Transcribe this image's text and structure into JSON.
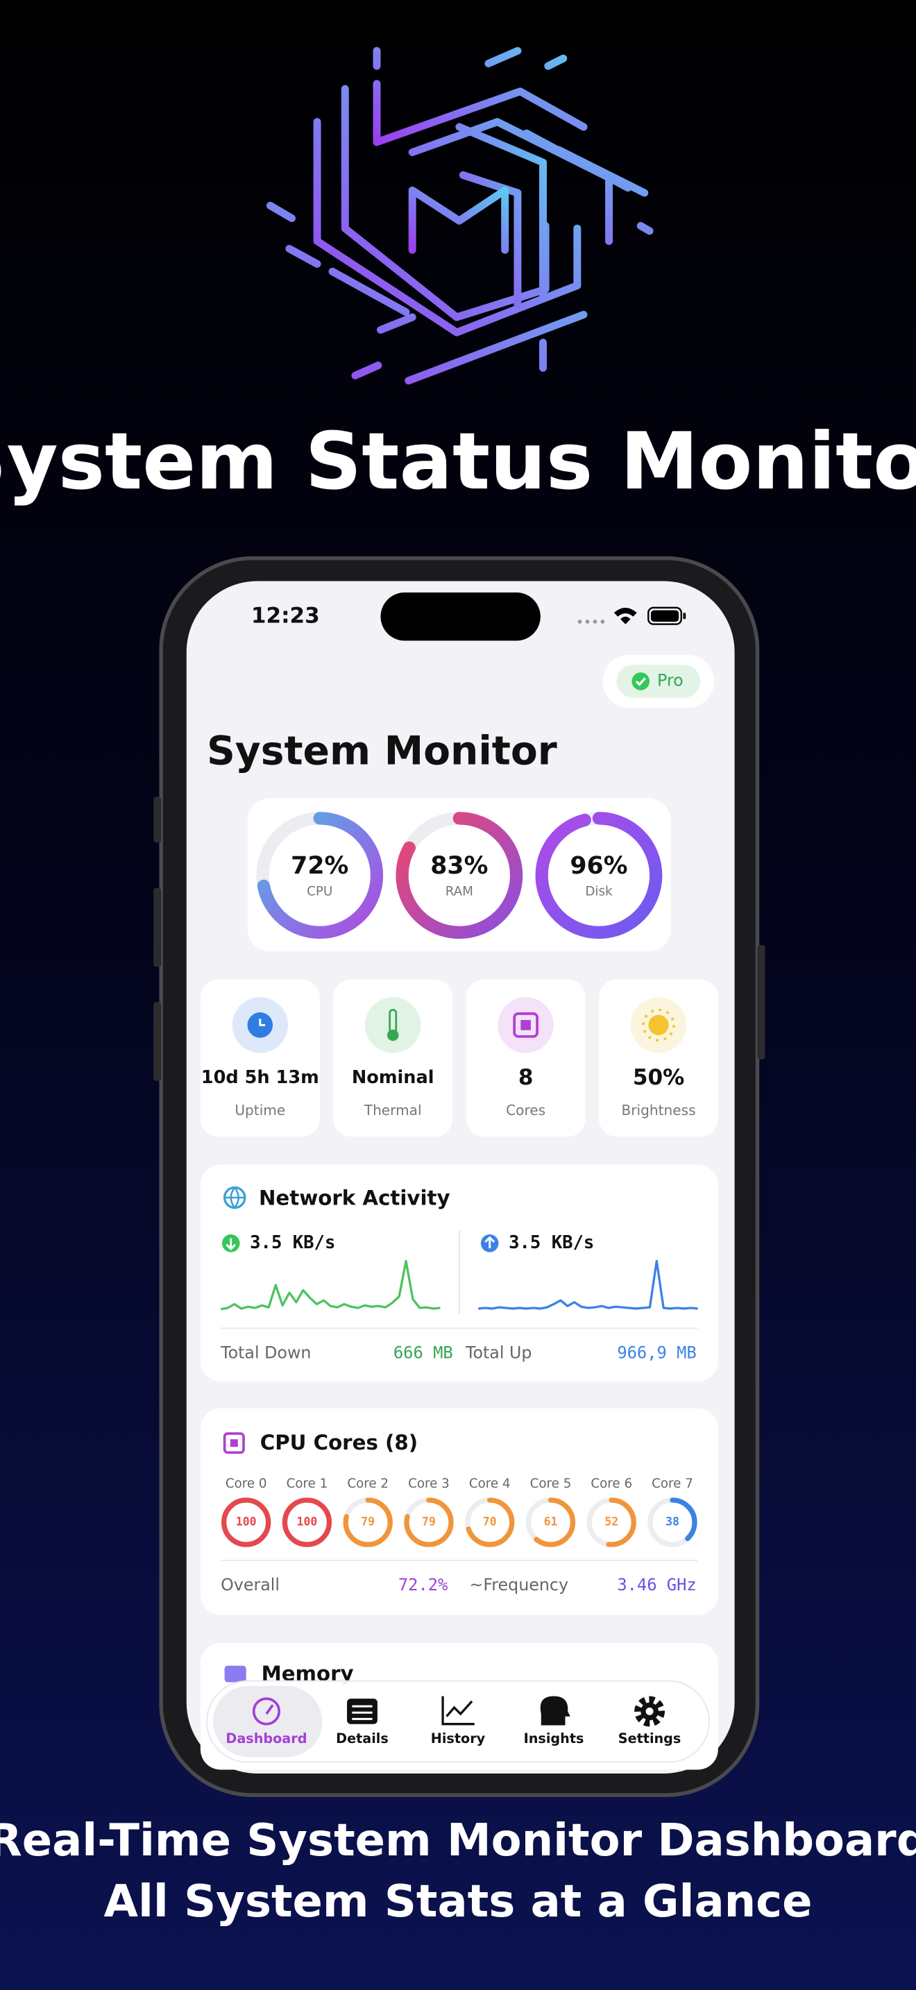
{
  "header": {
    "title": "System Status Monitor"
  },
  "status_bar": {
    "time": "12:23"
  },
  "app": {
    "pro_badge": "Pro",
    "title": "System Monitor",
    "gauges": [
      {
        "value": 72,
        "label": "72%",
        "name": "CPU"
      },
      {
        "value": 83,
        "label": "83%",
        "name": "RAM"
      },
      {
        "value": 96,
        "label": "96%",
        "name": "Disk"
      }
    ],
    "stats": [
      {
        "value": "10d 5h 13m",
        "label": "Uptime"
      },
      {
        "value": "Nominal",
        "label": "Thermal"
      },
      {
        "value": "8",
        "label": "Cores"
      },
      {
        "value": "50%",
        "label": "Brightness"
      }
    ],
    "network": {
      "title": "Network Activity",
      "down_rate": "3.5 KB/s",
      "up_rate": "3.5 KB/s",
      "down_series": [
        0.4,
        0.6,
        1.2,
        0.5,
        0.8,
        0.6,
        1.0,
        0.7,
        4.2,
        1.0,
        3.0,
        1.5,
        3.4,
        2.2,
        1.2,
        1.8,
        0.9,
        0.7,
        1.2,
        0.8,
        0.6,
        1.0,
        0.8,
        0.9,
        0.7,
        1.4,
        2.4,
        8.0,
        2.0,
        0.6,
        0.7,
        0.5,
        0.6
      ],
      "up_series": [
        0.5,
        0.6,
        0.5,
        0.7,
        0.6,
        0.5,
        0.6,
        0.5,
        0.6,
        0.5,
        0.7,
        1.2,
        1.8,
        0.9,
        1.5,
        0.8,
        0.6,
        0.7,
        0.9,
        0.6,
        0.8,
        0.7,
        0.6,
        0.5,
        0.6,
        0.7,
        8.0,
        0.6,
        0.5,
        0.6,
        0.5,
        0.6,
        0.5
      ],
      "total_down_label": "Total Down",
      "total_down": "666 MB",
      "total_up_label": "Total Up",
      "total_up": "966,9 MB"
    },
    "cpu_cores": {
      "title": "CPU Cores (8)",
      "cores": [
        {
          "name": "Core 0",
          "value": 100,
          "color": "#e5484d"
        },
        {
          "name": "Core 1",
          "value": 100,
          "color": "#e5484d"
        },
        {
          "name": "Core 2",
          "value": 79,
          "color": "#f0953a"
        },
        {
          "name": "Core 3",
          "value": 79,
          "color": "#f0953a"
        },
        {
          "name": "Core 4",
          "value": 70,
          "color": "#f0953a"
        },
        {
          "name": "Core 5",
          "value": 61,
          "color": "#f0953a"
        },
        {
          "name": "Core 6",
          "value": 52,
          "color": "#f0953a"
        },
        {
          "name": "Core 7",
          "value": 38,
          "color": "#3b82e6"
        }
      ],
      "overall_label": "Overall",
      "overall": "72.2%",
      "frequency_label": "~Frequency",
      "frequency": "3.46 GHz"
    },
    "memory": {
      "title": "Memory"
    }
  },
  "tabs": [
    "Dashboard",
    "Details",
    "History",
    "Insights",
    "Settings"
  ],
  "footer": {
    "lines": [
      "Real-Time System Monitor Dashboard",
      "All System Stats at a Glance"
    ]
  }
}
